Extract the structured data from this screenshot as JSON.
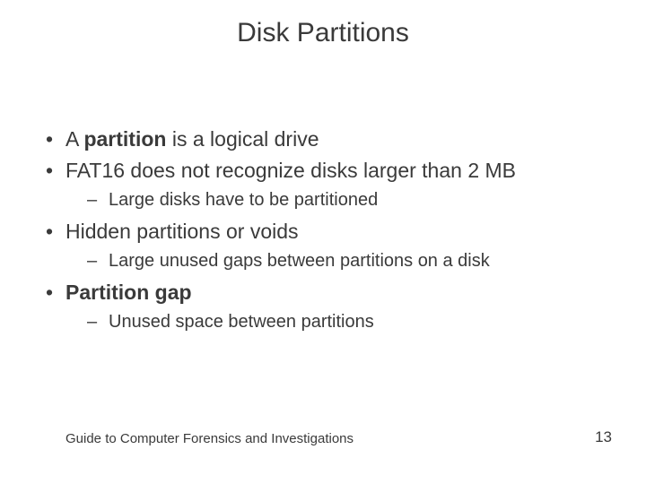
{
  "slide": {
    "title": "Disk Partitions",
    "bullets": [
      {
        "segments": [
          {
            "text": "A ",
            "bold": false
          },
          {
            "text": "partition",
            "bold": true
          },
          {
            "text": " is a logical drive",
            "bold": false
          }
        ],
        "children": []
      },
      {
        "segments": [
          {
            "text": "FAT16 does not recognize disks larger than 2 MB",
            "bold": false
          }
        ],
        "children": [
          {
            "segments": [
              {
                "text": "Large disks have to be partitioned",
                "bold": false
              }
            ]
          }
        ]
      },
      {
        "segments": [
          {
            "text": "Hidden partitions or voids",
            "bold": false
          }
        ],
        "children": [
          {
            "segments": [
              {
                "text": "Large unused gaps between partitions on a disk",
                "bold": false
              }
            ]
          }
        ]
      },
      {
        "segments": [
          {
            "text": "Partition gap",
            "bold": true
          }
        ],
        "children": [
          {
            "segments": [
              {
                "text": "Unused space between partitions",
                "bold": false
              }
            ]
          }
        ]
      }
    ],
    "footer": "Guide to Computer Forensics and Investigations",
    "page_number": "13"
  },
  "style": {
    "background_color": "#ffffff",
    "text_color": "#3a3a3a",
    "title_fontsize": 30,
    "l1_fontsize": 23,
    "l2_fontsize": 20,
    "footer_fontsize": 15,
    "page_fontsize": 17,
    "font_family": "Arial"
  }
}
